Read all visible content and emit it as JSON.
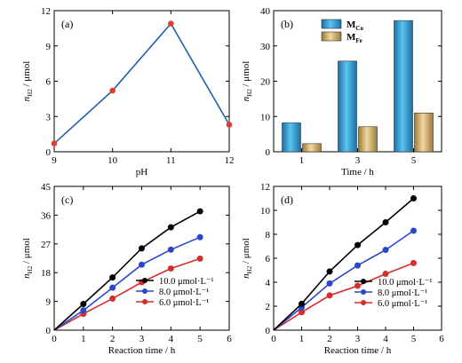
{
  "chart_data": [
    {
      "panel_label": "(a)",
      "type": "line",
      "xlabel": "pH",
      "ylabel": "n_H2 / μmol",
      "xlim": [
        9,
        12
      ],
      "ylim": [
        0,
        12
      ],
      "xticks": [
        "9",
        "10",
        "11",
        "12"
      ],
      "yticks": [
        "0",
        "3",
        "6",
        "9",
        "12"
      ],
      "series": [
        {
          "x": [
            9,
            10,
            11,
            12
          ],
          "values": [
            0.7,
            5.2,
            10.9,
            2.3
          ],
          "color": "#1f5fa8",
          "marker": "#e23b30"
        }
      ]
    },
    {
      "panel_label": "(b)",
      "type": "bar",
      "xlabel": "Time / h",
      "ylabel": "n_H2 / μmol",
      "ylim": [
        0,
        40
      ],
      "categories": [
        "1",
        "3",
        "5"
      ],
      "yticks": [
        "0",
        "10",
        "20",
        "30",
        "40"
      ],
      "legend_position": "top-left",
      "series": [
        {
          "name": "M",
          "sub": "Co",
          "values": [
            8.2,
            25.7,
            37.2
          ],
          "color": "#2f9fd6"
        },
        {
          "name": "M",
          "sub": "Fe",
          "values": [
            2.3,
            7.1,
            11.0
          ],
          "color": "#c9a460"
        }
      ]
    },
    {
      "panel_label": "(c)",
      "type": "line",
      "xlabel": "Reaction time / h",
      "ylabel": "n_H2 / μmol",
      "xlim": [
        0,
        6
      ],
      "ylim": [
        0,
        45
      ],
      "xticks": [
        "0",
        "1",
        "2",
        "3",
        "4",
        "5",
        "6"
      ],
      "yticks": [
        "0",
        "9",
        "18",
        "27",
        "36",
        "45"
      ],
      "legend_position": "bottom-right",
      "series": [
        {
          "name": "10.0 μmol·L⁻¹",
          "x": [
            0,
            1,
            2,
            3,
            4,
            5
          ],
          "values": [
            0,
            8.2,
            16.5,
            25.6,
            32.2,
            37.2
          ],
          "color": "#000000"
        },
        {
          "name": "8.0 μmol·L⁻¹",
          "x": [
            0,
            1,
            2,
            3,
            4,
            5
          ],
          "values": [
            0,
            6.2,
            13.3,
            20.5,
            25.2,
            29.1
          ],
          "color": "#2b47c9"
        },
        {
          "name": "6.0 μmol·L⁻¹",
          "x": [
            0,
            1,
            2,
            3,
            4,
            5
          ],
          "values": [
            0,
            5.1,
            9.9,
            15.0,
            19.3,
            22.4
          ],
          "color": "#d32f2f"
        }
      ]
    },
    {
      "panel_label": "(d)",
      "type": "line",
      "xlabel": "Reaction time / h",
      "ylabel": "n_H2 / μmol",
      "xlim": [
        0,
        6
      ],
      "ylim": [
        0,
        12
      ],
      "xticks": [
        "0",
        "1",
        "2",
        "3",
        "4",
        "5",
        "6"
      ],
      "yticks": [
        "0",
        "2",
        "4",
        "6",
        "8",
        "10",
        "12"
      ],
      "legend_position": "bottom-right",
      "series": [
        {
          "name": "10.0 μmol·L⁻¹",
          "x": [
            0,
            1,
            2,
            3,
            4,
            5
          ],
          "values": [
            0,
            2.2,
            4.9,
            7.1,
            9.0,
            11.0
          ],
          "color": "#000000"
        },
        {
          "name": "8.0 μmol·L⁻¹",
          "x": [
            0,
            1,
            2,
            3,
            4,
            5
          ],
          "values": [
            0,
            1.9,
            3.9,
            5.4,
            6.7,
            8.3
          ],
          "color": "#2b47c9"
        },
        {
          "name": "6.0 μmol·L⁻¹",
          "x": [
            0,
            1,
            2,
            3,
            4,
            5
          ],
          "values": [
            0,
            1.5,
            2.9,
            3.7,
            4.7,
            5.6
          ],
          "color": "#d32f2f"
        }
      ]
    }
  ]
}
